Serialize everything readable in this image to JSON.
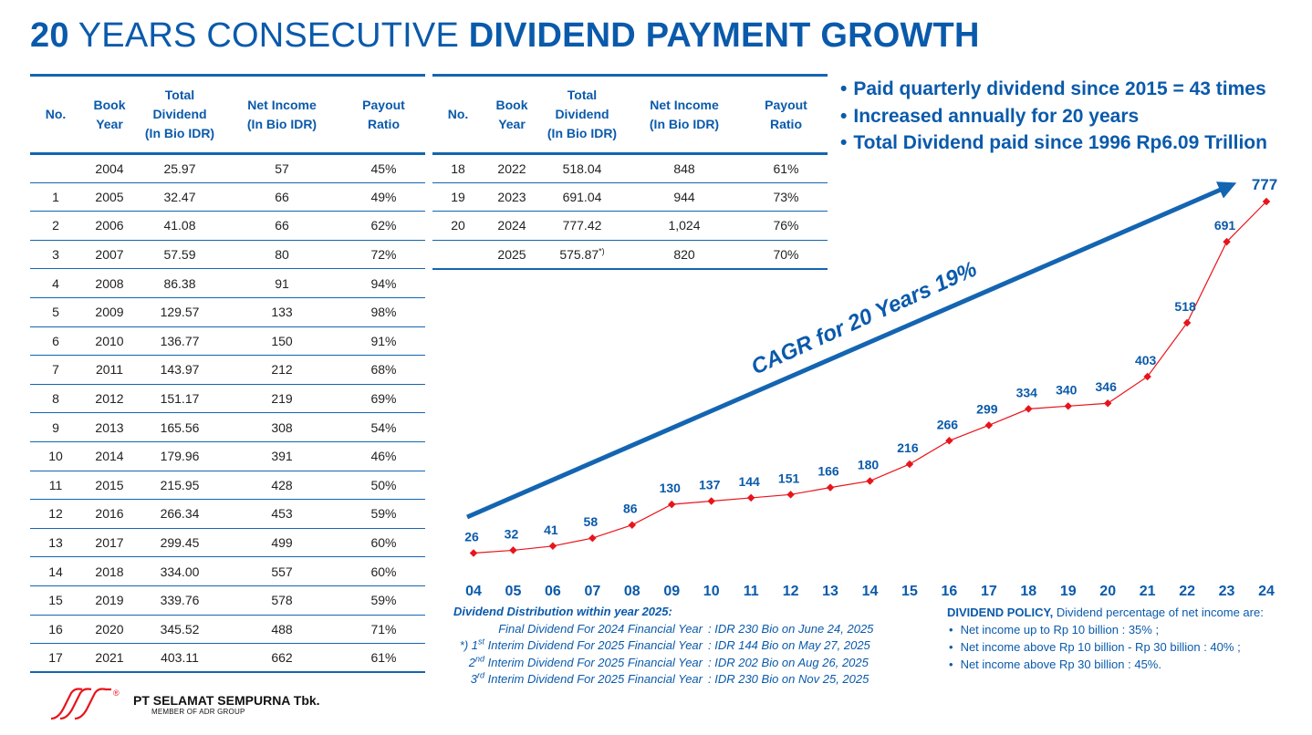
{
  "title": {
    "bold_prefix": "20",
    "normal": " YEARS CONSECUTIVE ",
    "bold_suffix": "DIVIDEND PAYMENT GROWTH"
  },
  "table": {
    "headers": {
      "no": "No.",
      "book_year_1": "Book",
      "book_year_2": "Year",
      "total_dividend_1": "Total",
      "total_dividend_2": "Dividend",
      "total_dividend_3": "(In Bio IDR)",
      "net_income_1": "Net Income",
      "net_income_2": "(In Bio IDR)",
      "payout_1": "Payout",
      "payout_2": "Ratio"
    },
    "left_rows": [
      {
        "no": "",
        "year": "2004",
        "dividend": "25.97",
        "net_income": "57",
        "payout": "45%"
      },
      {
        "no": "1",
        "year": "2005",
        "dividend": "32.47",
        "net_income": "66",
        "payout": "49%"
      },
      {
        "no": "2",
        "year": "2006",
        "dividend": "41.08",
        "net_income": "66",
        "payout": "62%"
      },
      {
        "no": "3",
        "year": "2007",
        "dividend": "57.59",
        "net_income": "80",
        "payout": "72%"
      },
      {
        "no": "4",
        "year": "2008",
        "dividend": "86.38",
        "net_income": "91",
        "payout": "94%"
      },
      {
        "no": "5",
        "year": "2009",
        "dividend": "129.57",
        "net_income": "133",
        "payout": "98%"
      },
      {
        "no": "6",
        "year": "2010",
        "dividend": "136.77",
        "net_income": "150",
        "payout": "91%"
      },
      {
        "no": "7",
        "year": "2011",
        "dividend": "143.97",
        "net_income": "212",
        "payout": "68%"
      },
      {
        "no": "8",
        "year": "2012",
        "dividend": "151.17",
        "net_income": "219",
        "payout": "69%"
      },
      {
        "no": "9",
        "year": "2013",
        "dividend": "165.56",
        "net_income": "308",
        "payout": "54%"
      },
      {
        "no": "10",
        "year": "2014",
        "dividend": "179.96",
        "net_income": "391",
        "payout": "46%"
      },
      {
        "no": "11",
        "year": "2015",
        "dividend": "215.95",
        "net_income": "428",
        "payout": "50%"
      },
      {
        "no": "12",
        "year": "2016",
        "dividend": "266.34",
        "net_income": "453",
        "payout": "59%"
      },
      {
        "no": "13",
        "year": "2017",
        "dividend": "299.45",
        "net_income": "499",
        "payout": "60%"
      },
      {
        "no": "14",
        "year": "2018",
        "dividend": "334.00",
        "net_income": "557",
        "payout": "60%"
      },
      {
        "no": "15",
        "year": "2019",
        "dividend": "339.76",
        "net_income": "578",
        "payout": "59%"
      },
      {
        "no": "16",
        "year": "2020",
        "dividend": "345.52",
        "net_income": "488",
        "payout": "71%"
      },
      {
        "no": "17",
        "year": "2021",
        "dividend": "403.11",
        "net_income": "662",
        "payout": "61%"
      }
    ],
    "right_rows": [
      {
        "no": "18",
        "year": "2022",
        "dividend": "518.04",
        "net_income": "848",
        "payout": "61%"
      },
      {
        "no": "19",
        "year": "2023",
        "dividend": "691.04",
        "net_income": "944",
        "payout": "73%"
      },
      {
        "no": "20",
        "year": "2024",
        "dividend": "777.42",
        "net_income": "1,024",
        "payout": "76%"
      },
      {
        "no": "",
        "year": "2025",
        "dividend": "575.87",
        "dividend_sup": "*)",
        "net_income": "820",
        "payout": "70%"
      }
    ]
  },
  "bullets": [
    "Paid quarterly dividend since 2015 = 43 times",
    "Increased annually for 20 years",
    "Total Dividend paid since 1996 Rp6.09 Trillion"
  ],
  "cagr_label": "CAGR for 20 Years 19%",
  "chart_data": {
    "type": "line",
    "title": "",
    "xlabel": "",
    "ylabel": "",
    "categories": [
      "04",
      "05",
      "06",
      "07",
      "08",
      "09",
      "10",
      "11",
      "12",
      "13",
      "14",
      "15",
      "16",
      "17",
      "18",
      "19",
      "20",
      "21",
      "22",
      "23",
      "24"
    ],
    "values": [
      26,
      32,
      41,
      58,
      86,
      130,
      137,
      144,
      151,
      166,
      180,
      216,
      266,
      299,
      334,
      340,
      346,
      403,
      518,
      691,
      777
    ],
    "labels": [
      "26",
      "32",
      "41",
      "58",
      "86",
      "130",
      "137",
      "144",
      "151",
      "166",
      "180",
      "216",
      "266",
      "299",
      "334",
      "340",
      "346",
      "403",
      "518",
      "691",
      "777"
    ],
    "ylim": [
      0,
      800
    ],
    "grid": false,
    "line_color": "#e8141b",
    "label_color": "#0a5aab"
  },
  "distribution": {
    "heading": "Dividend Distribution within year 2025:",
    "rows": [
      {
        "prefix": "",
        "ord": "",
        "sup": "",
        "text": "Final Dividend For 2024 Financial Year",
        "value": ": IDR 230 Bio on June 24, 2025"
      },
      {
        "prefix": "*) ",
        "ord": "1",
        "sup": "st",
        "text": " Interim Dividend For 2025 Financial Year",
        "value": ": IDR 144 Bio on May 27, 2025"
      },
      {
        "prefix": "",
        "ord": "2",
        "sup": "nd",
        "text": " Interim Dividend For 2025 Financial Year",
        "value": ": IDR 202 Bio on Aug 26, 2025"
      },
      {
        "prefix": "",
        "ord": "3",
        "sup": "rd",
        "text": " Interim Dividend For 2025 Financial Year",
        "value": ": IDR 230 Bio on Nov 25, 2025"
      }
    ]
  },
  "policy": {
    "heading": "DIVIDEND POLICY,",
    "heading_rest": " Dividend percentage of net income are:",
    "items": [
      "Net income up to Rp 10 billion : 35% ;",
      "Net income above Rp 10 billion - Rp 30 billion : 40% ;",
      "Net income above Rp 30 billion : 45%."
    ]
  },
  "footer": {
    "company": "PT SELAMAT SEMPURNA Tbk.",
    "member": "MEMBER OF ADR GROUP",
    "registered": "®"
  },
  "colors": {
    "brand_blue": "#0a5aab",
    "rule_blue": "#1465b1",
    "line_red": "#e8141b"
  }
}
